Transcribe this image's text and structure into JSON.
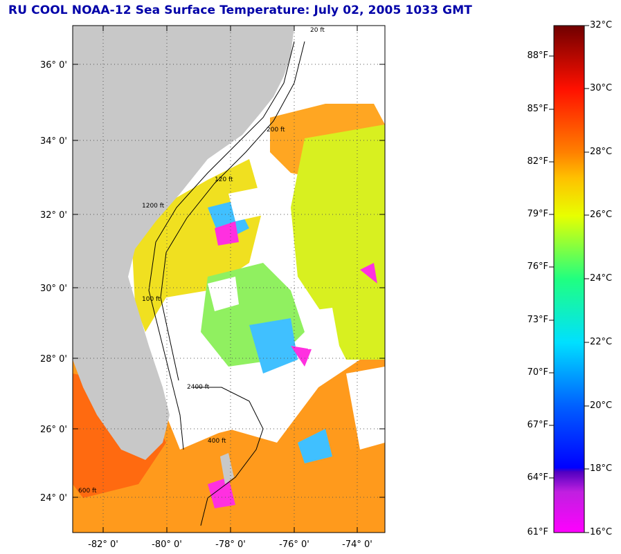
{
  "title": "RU COOL  NOAA-12  Sea Surface Temperature:  July 02, 2005 1033 GMT",
  "map": {
    "lat_labels": [
      "36° 0'",
      "34° 0'",
      "32° 0'",
      "30° 0'",
      "28° 0'",
      "26° 0'",
      "24° 0'"
    ],
    "lon_labels": [
      "-82° 0'",
      "-80° 0'",
      "-78° 0'",
      "-76° 0'",
      "-74° 0'"
    ],
    "land_color": "#c8c8c8",
    "cloud_color": "#ffffff",
    "contour_labels": [
      "20 ft",
      "200 ft",
      "600 ft",
      "1200 ft",
      "2400 ft",
      "120 ft",
      "100 ft",
      "400 ft"
    ]
  },
  "colorbar": {
    "celsius_labels": [
      "32°C",
      "30°C",
      "28°C",
      "26°C",
      "24°C",
      "22°C",
      "20°C",
      "18°C",
      "16°C"
    ],
    "fahrenheit_labels": [
      "88°F",
      "85°F",
      "82°F",
      "79°F",
      "76°F",
      "73°F",
      "70°F",
      "67°F",
      "64°F",
      "61°F"
    ]
  }
}
